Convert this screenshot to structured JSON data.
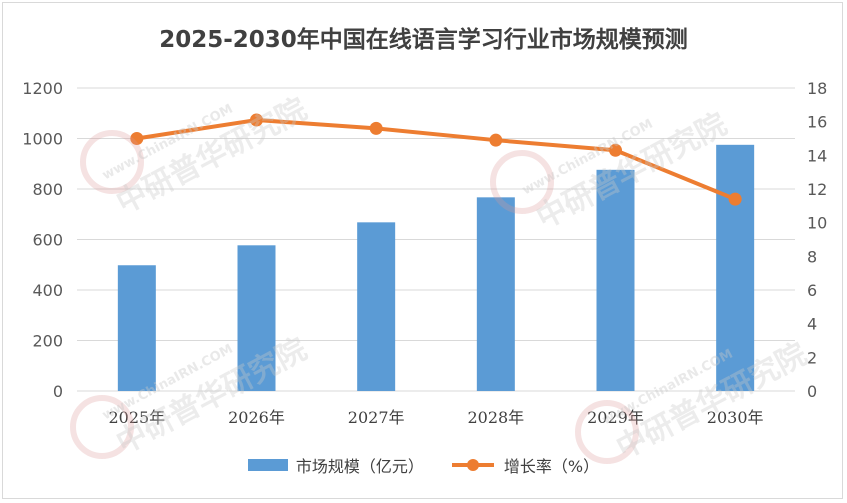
{
  "chart_data": {
    "type": "bar+line",
    "title": "2025-2030年中国在线语言学习行业市场规模预测",
    "categories": [
      "2025年",
      "2026年",
      "2027年",
      "2028年",
      "2029年",
      "2030年"
    ],
    "series": [
      {
        "name": "市场规模（亿元）",
        "type": "bar",
        "axis": "left",
        "values": [
          498,
          577,
          668,
          767,
          876,
          975
        ]
      },
      {
        "name": "增长率（%）",
        "type": "line",
        "axis": "right",
        "values": [
          15.0,
          16.1,
          15.6,
          14.9,
          14.3,
          11.4
        ]
      }
    ],
    "y_left": {
      "lim": [
        0,
        1200
      ],
      "ticks": [
        "0",
        "200",
        "400",
        "600",
        "800",
        "1000",
        "1200"
      ]
    },
    "y_right": {
      "lim": [
        0,
        18
      ],
      "ticks": [
        "0",
        "2",
        "4",
        "6",
        "8",
        "10",
        "12",
        "14",
        "16",
        "18"
      ]
    },
    "grid": true,
    "legend_position": "bottom",
    "colors": {
      "bar": "#5b9bd5",
      "line": "#ed7d31",
      "grid": "#d9d9d9",
      "axis_text": "#595959"
    }
  },
  "watermark": {
    "text": "中研普华研究院",
    "subtext": "www.ChinaIRN.COM"
  }
}
